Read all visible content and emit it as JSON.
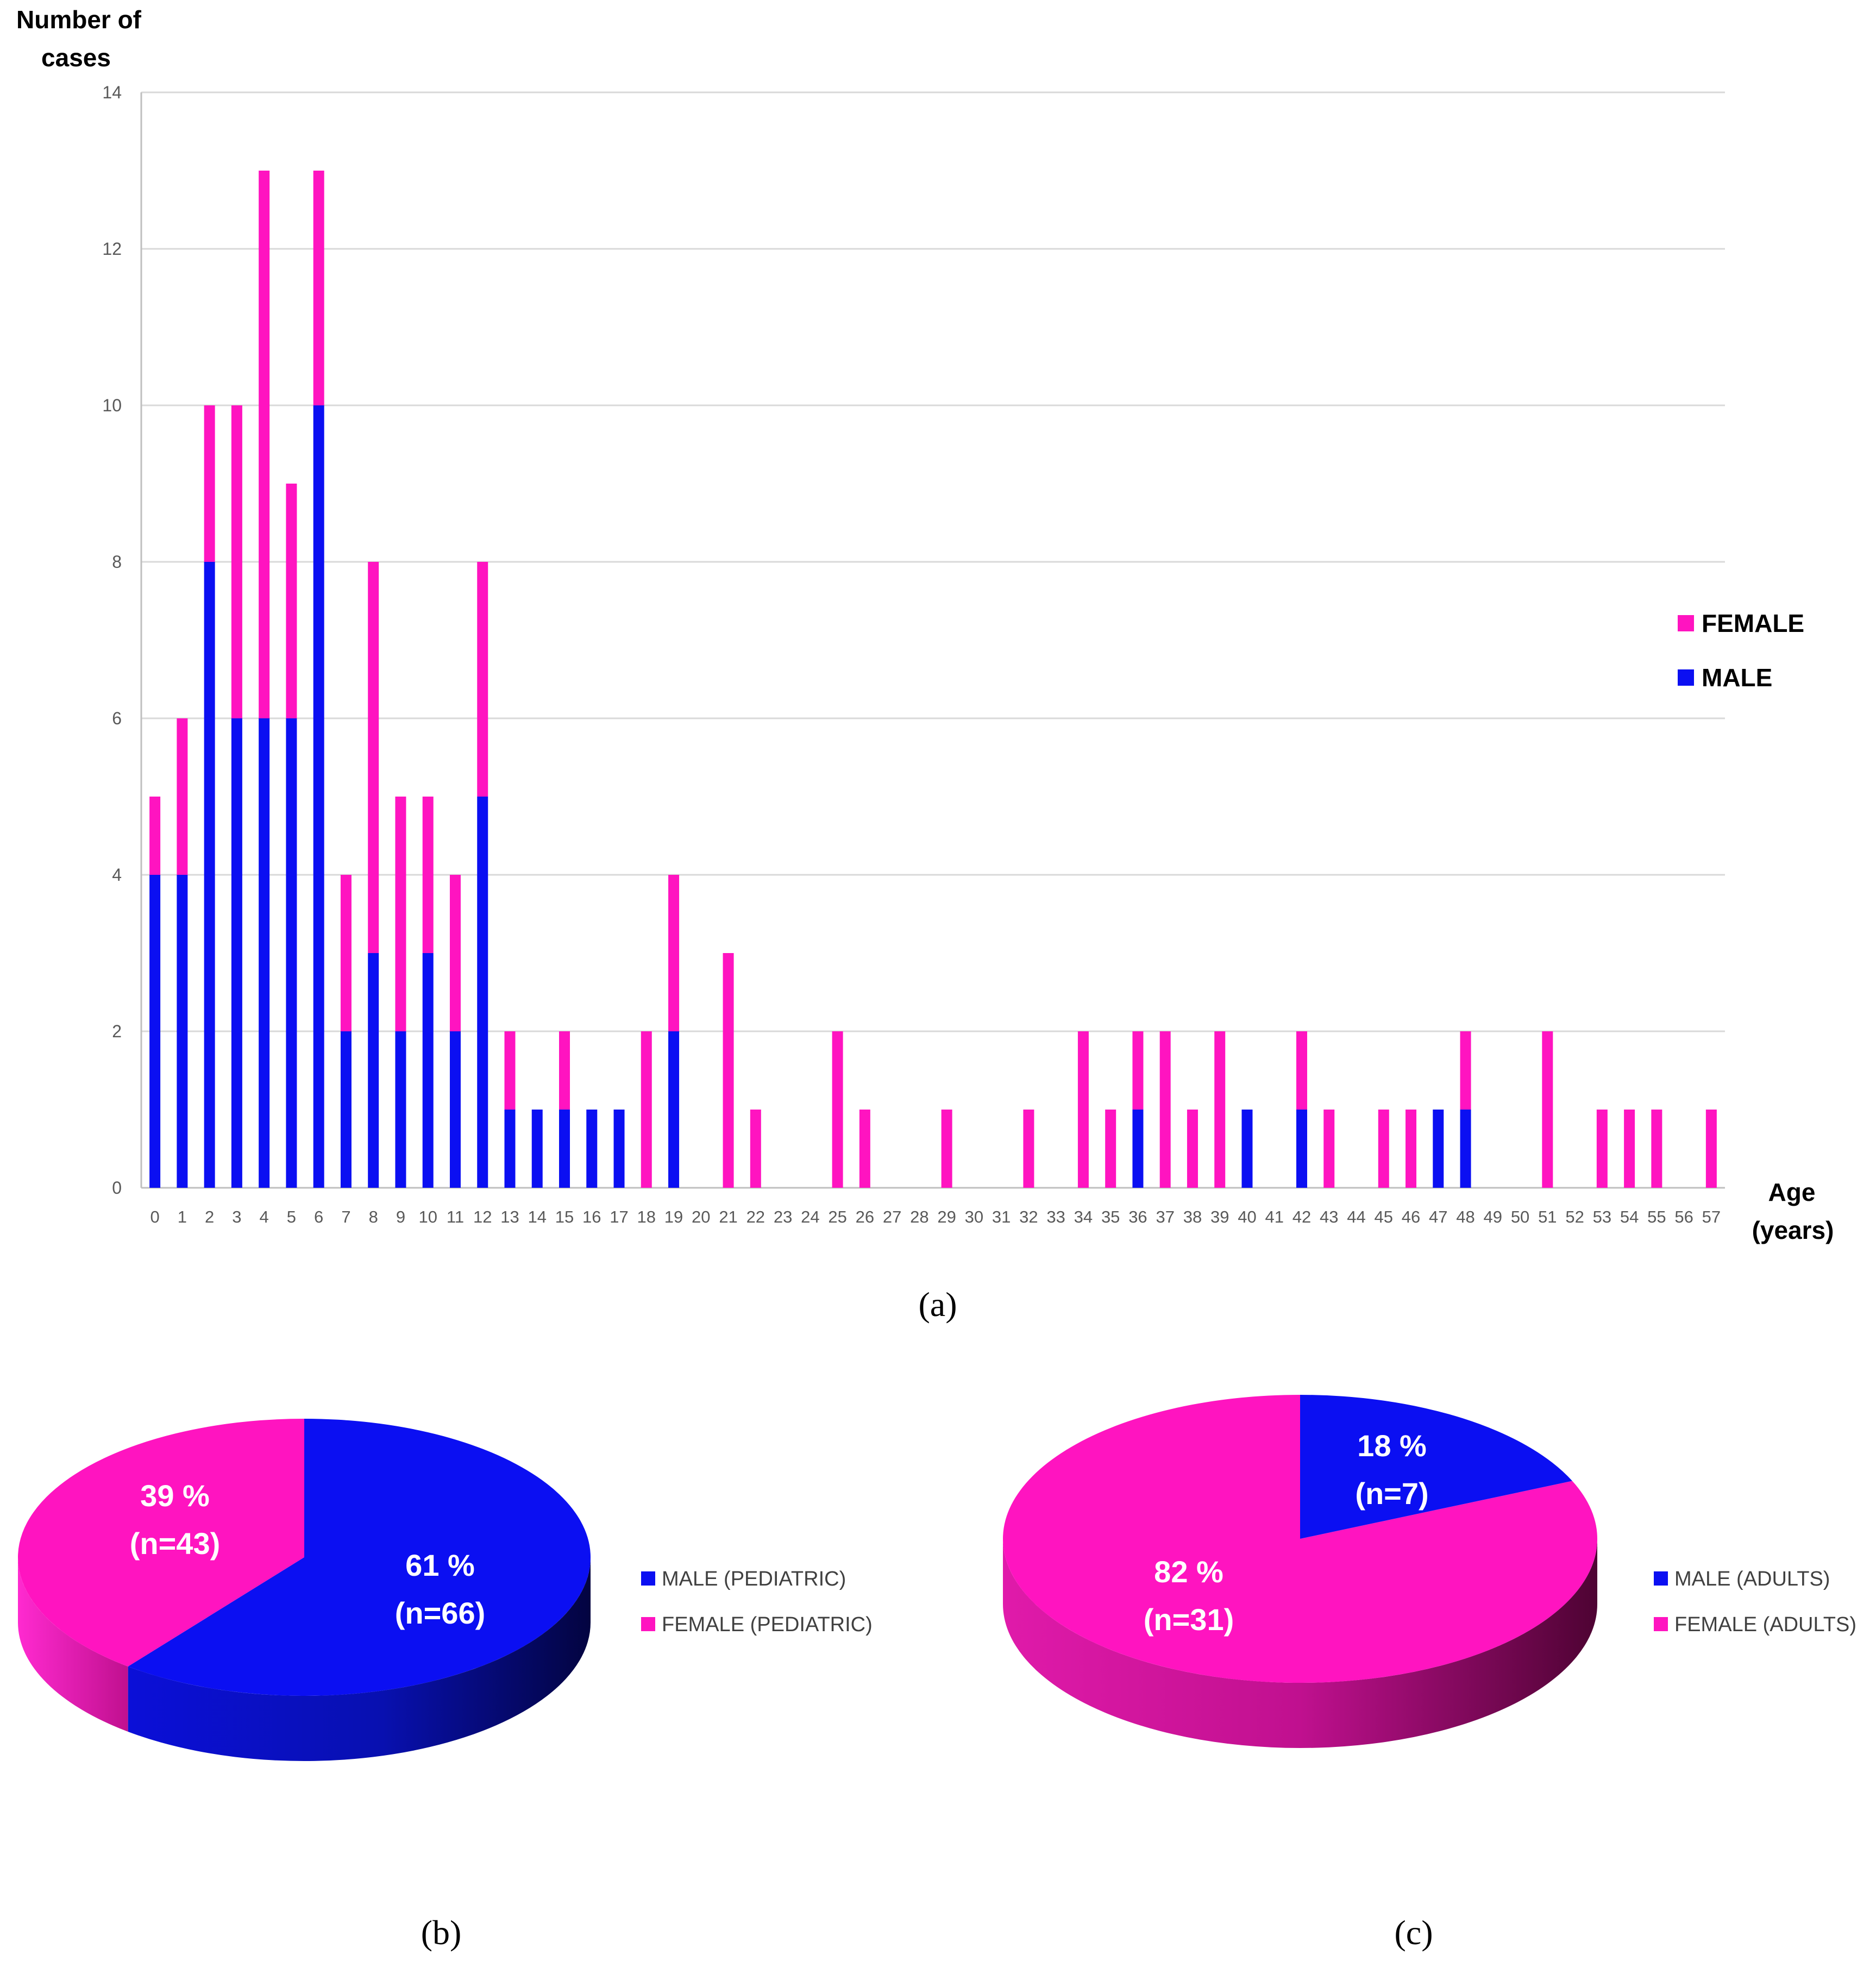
{
  "colors": {
    "male": "#0b0ff2",
    "female": "#ff14c0",
    "grid": "#d9d9d9",
    "axis": "#bfbfbf"
  },
  "chart_data": [
    {
      "id": "a",
      "type": "bar",
      "stacked": true,
      "caption": "(a)",
      "ylabel_line1": "Number of",
      "ylabel_line2": "cases",
      "xlabel_line1": "Age",
      "xlabel_line2": "(years)",
      "ylim": [
        0,
        14
      ],
      "yticks": [
        "0",
        "2",
        "4",
        "6",
        "8",
        "10",
        "12",
        "14"
      ],
      "grid": true,
      "legend_position": "right",
      "legend": [
        "FEMALE",
        "MALE"
      ],
      "categories": [
        "0",
        "1",
        "2",
        "3",
        "4",
        "5",
        "6",
        "7",
        "8",
        "9",
        "10",
        "11",
        "12",
        "13",
        "14",
        "15",
        "16",
        "17",
        "18",
        "19",
        "20",
        "21",
        "22",
        "23",
        "24",
        "25",
        "26",
        "27",
        "28",
        "29",
        "30",
        "31",
        "32",
        "33",
        "34",
        "35",
        "36",
        "37",
        "38",
        "39",
        "40",
        "41",
        "42",
        "43",
        "44",
        "45",
        "46",
        "47",
        "48",
        "49",
        "50",
        "51",
        "52",
        "53",
        "54",
        "55",
        "56",
        "57"
      ],
      "series": [
        {
          "name": "MALE",
          "values": [
            4,
            4,
            8,
            6,
            6,
            6,
            10,
            2,
            3,
            2,
            3,
            2,
            5,
            1,
            1,
            1,
            1,
            1,
            0,
            2,
            0,
            0,
            0,
            0,
            0,
            0,
            0,
            0,
            0,
            0,
            0,
            0,
            0,
            0,
            0,
            0,
            1,
            0,
            0,
            0,
            1,
            0,
            1,
            0,
            0,
            0,
            0,
            1,
            1,
            0,
            0,
            0,
            0,
            0,
            0,
            0,
            0,
            0
          ]
        },
        {
          "name": "FEMALE",
          "values": [
            1,
            2,
            2,
            4,
            7,
            3,
            3,
            2,
            5,
            3,
            2,
            2,
            3,
            1,
            0,
            1,
            0,
            0,
            2,
            2,
            0,
            3,
            1,
            0,
            0,
            2,
            1,
            0,
            0,
            1,
            0,
            0,
            1,
            0,
            2,
            1,
            1,
            2,
            1,
            2,
            0,
            0,
            1,
            1,
            0,
            1,
            1,
            0,
            1,
            0,
            0,
            2,
            0,
            1,
            1,
            1,
            0,
            1
          ]
        }
      ]
    },
    {
      "id": "b",
      "type": "pie",
      "caption": "(b)",
      "legend_position": "right",
      "slices": [
        {
          "name": "MALE (PEDIATRIC)",
          "value": 66,
          "percent_label": "61 %",
          "n_label": "(n=66)"
        },
        {
          "name": "FEMALE (PEDIATRIC)",
          "value": 43,
          "percent_label": "39 %",
          "n_label": "(n=43)"
        }
      ]
    },
    {
      "id": "c",
      "type": "pie",
      "caption": "(c)",
      "legend_position": "right",
      "slices": [
        {
          "name": "MALE (ADULTS)",
          "value": 7,
          "percent_label": "18 %",
          "n_label": "(n=7)"
        },
        {
          "name": "FEMALE (ADULTS)",
          "value": 31,
          "percent_label": "82 %",
          "n_label": "(n=31)"
        }
      ]
    }
  ]
}
